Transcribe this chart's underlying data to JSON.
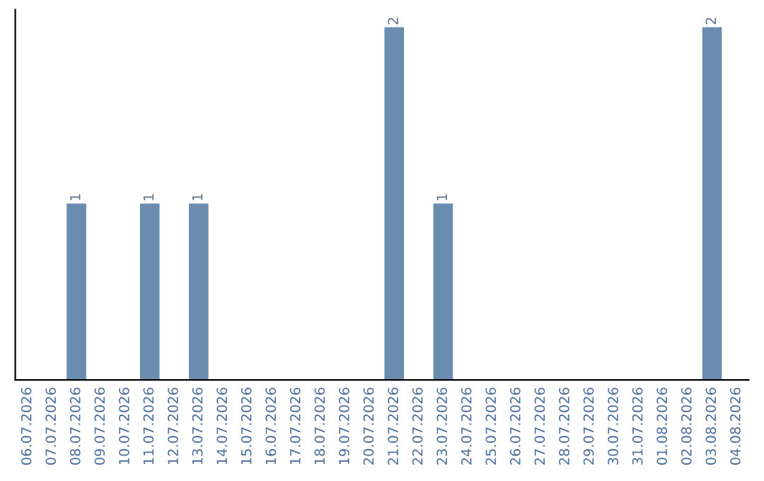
{
  "chart_data": {
    "type": "bar",
    "categories": [
      "06.07.2026",
      "07.07.2026",
      "08.07.2026",
      "09.07.2026",
      "10.07.2026",
      "11.07.2026",
      "12.07.2026",
      "13.07.2026",
      "14.07.2026",
      "15.07.2026",
      "16.07.2026",
      "17.07.2026",
      "18.07.2026",
      "19.07.2026",
      "20.07.2026",
      "21.07.2026",
      "22.07.2026",
      "23.07.2026",
      "24.07.2026",
      "25.07.2026",
      "26.07.2026",
      "27.07.2026",
      "28.07.2026",
      "29.07.2026",
      "30.07.2026",
      "31.07.2026",
      "01.08.2026",
      "02.08.2026",
      "03.08.2026",
      "04.08.2026"
    ],
    "values": [
      0,
      0,
      1,
      0,
      0,
      1,
      0,
      1,
      0,
      0,
      0,
      0,
      0,
      0,
      0,
      2,
      0,
      1,
      0,
      0,
      0,
      0,
      0,
      0,
      0,
      0,
      0,
      0,
      2,
      0
    ],
    "value_labels": [
      null,
      null,
      "1",
      null,
      null,
      "1",
      null,
      "1",
      null,
      null,
      null,
      null,
      null,
      null,
      null,
      "2",
      null,
      "1",
      null,
      null,
      null,
      null,
      null,
      null,
      null,
      null,
      null,
      null,
      "2",
      null
    ],
    "color": "#6a8caf",
    "tick_labels": "x",
    "grid": false,
    "legend": false
  }
}
